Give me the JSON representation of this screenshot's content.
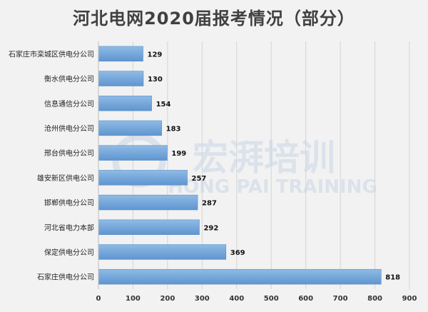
{
  "chart_data": {
    "type": "bar",
    "orientation": "horizontal",
    "title": "河北电网2020届报考情况（部分）",
    "categories": [
      "石家庄市栾城区供电分公司",
      "衡水供电分公司",
      "信息通信分公司",
      "沧州供电分公司",
      "邢台供电分公司",
      "雄安新区供电公司",
      "邯郸供电分公司",
      "河北省电力本部",
      "保定供电分公司",
      "石家庄供电分公司"
    ],
    "values": [
      129,
      130,
      154,
      183,
      199,
      257,
      287,
      292,
      369,
      818
    ],
    "xlim": [
      0,
      900
    ],
    "xticks": [
      0,
      100,
      200,
      300,
      400,
      500,
      600,
      700,
      800,
      900
    ],
    "grid": "vertical",
    "bar_color": "#6fa3d8",
    "xlabel": "",
    "ylabel": ""
  },
  "watermark": {
    "main": "宏湃培训",
    "sub": "HONG PAI TRAINING"
  }
}
